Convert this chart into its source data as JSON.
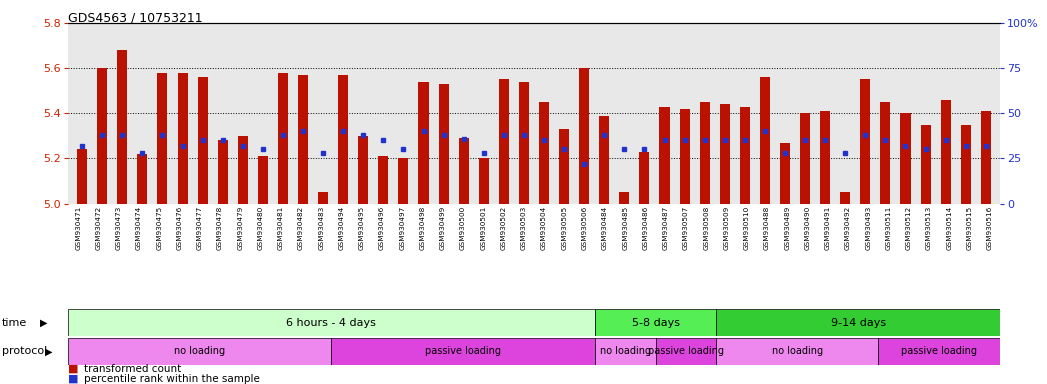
{
  "title": "GDS4563 / 10753211",
  "samples": [
    "GSM930471",
    "GSM930472",
    "GSM930473",
    "GSM930474",
    "GSM930475",
    "GSM930476",
    "GSM930477",
    "GSM930478",
    "GSM930479",
    "GSM930480",
    "GSM930481",
    "GSM930482",
    "GSM930483",
    "GSM930494",
    "GSM930495",
    "GSM930496",
    "GSM930497",
    "GSM930498",
    "GSM930499",
    "GSM930500",
    "GSM930501",
    "GSM930502",
    "GSM930503",
    "GSM930504",
    "GSM930505",
    "GSM930506",
    "GSM930484",
    "GSM930485",
    "GSM930486",
    "GSM930487",
    "GSM930507",
    "GSM930508",
    "GSM930509",
    "GSM930510",
    "GSM930488",
    "GSM930489",
    "GSM930490",
    "GSM930491",
    "GSM930492",
    "GSM930493",
    "GSM930511",
    "GSM930512",
    "GSM930513",
    "GSM930514",
    "GSM930515",
    "GSM930516"
  ],
  "red_values": [
    5.24,
    5.6,
    5.68,
    5.22,
    5.58,
    5.58,
    5.56,
    5.28,
    5.3,
    5.21,
    5.58,
    5.57,
    5.05,
    5.57,
    5.3,
    5.21,
    5.2,
    5.54,
    5.53,
    5.29,
    5.2,
    5.55,
    5.54,
    5.45,
    5.33,
    5.6,
    5.39,
    5.05,
    5.23,
    5.43,
    5.42,
    5.45,
    5.44,
    5.43,
    5.56,
    5.27,
    5.4,
    5.41,
    5.05,
    5.55,
    5.45,
    5.4,
    5.35,
    5.46,
    5.35,
    5.41
  ],
  "blue_values": [
    32,
    38,
    38,
    28,
    38,
    32,
    35,
    35,
    32,
    30,
    38,
    40,
    28,
    40,
    38,
    35,
    30,
    40,
    38,
    36,
    28,
    38,
    38,
    35,
    30,
    22,
    38,
    30,
    30,
    35,
    35,
    35,
    35,
    35,
    40,
    28,
    35,
    35,
    28,
    38,
    35,
    32,
    30,
    35,
    32,
    32
  ],
  "ylim_left": [
    5.0,
    5.8
  ],
  "ylim_right": [
    0,
    100
  ],
  "yticks_left": [
    5.0,
    5.2,
    5.4,
    5.6,
    5.8
  ],
  "yticks_right": [
    0,
    25,
    50,
    75,
    100
  ],
  "ytick_labels_right": [
    "0",
    "25",
    "50",
    "75",
    "100%"
  ],
  "bar_color": "#bb1100",
  "dot_color": "#2233cc",
  "bar_width": 0.5,
  "time_groups": [
    {
      "label": "6 hours - 4 days",
      "start": 0,
      "end": 26,
      "color": "#ccffcc"
    },
    {
      "label": "5-8 days",
      "start": 26,
      "end": 32,
      "color": "#55ee55"
    },
    {
      "label": "9-14 days",
      "start": 32,
      "end": 46,
      "color": "#33cc33"
    }
  ],
  "protocol_groups": [
    {
      "label": "no loading",
      "start": 0,
      "end": 13,
      "color": "#ee88ee"
    },
    {
      "label": "passive loading",
      "start": 13,
      "end": 26,
      "color": "#dd44dd"
    },
    {
      "label": "no loading",
      "start": 26,
      "end": 29,
      "color": "#ee88ee"
    },
    {
      "label": "passive loading",
      "start": 29,
      "end": 32,
      "color": "#dd44dd"
    },
    {
      "label": "no loading",
      "start": 32,
      "end": 40,
      "color": "#ee88ee"
    },
    {
      "label": "passive loading",
      "start": 40,
      "end": 46,
      "color": "#dd44dd"
    }
  ],
  "legend_items": [
    {
      "label": "transformed count",
      "color": "#bb1100"
    },
    {
      "label": "percentile rank within the sample",
      "color": "#2233cc"
    }
  ],
  "background_color": "#ffffff",
  "left_axis_color": "#cc2200",
  "right_axis_color": "#2233cc",
  "grid_color": "#000000",
  "plot_bg_color": "#e8e8e8"
}
